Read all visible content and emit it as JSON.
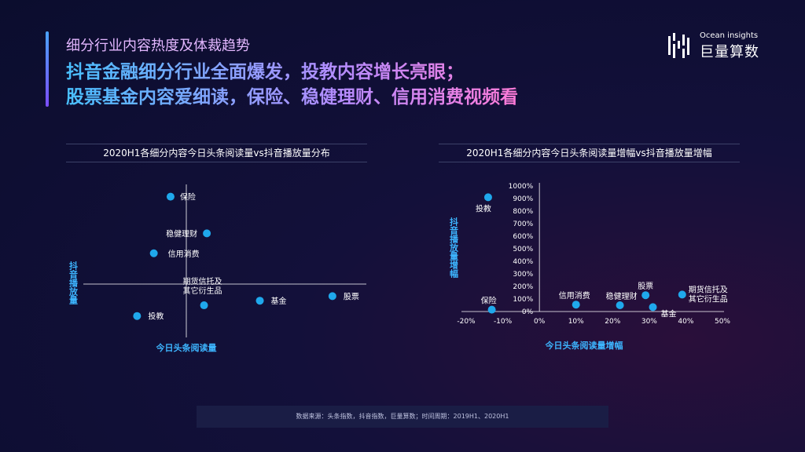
{
  "header": {
    "subtitle": "细分行业内容热度及体裁趋势",
    "headline_line1": "抖音金融细分行业全面爆发，投教内容增长亮眼；",
    "headline_line2": "股票基金内容爱细读，保险、稳健理财、信用消费视频看"
  },
  "logo": {
    "en": "Ocean insights",
    "cn": "巨量算数"
  },
  "colors": {
    "point": "#1fa8ec",
    "axis_title": "#3db5ff",
    "accent": "#4aa3ff"
  },
  "chart_data": [
    {
      "type": "scatter",
      "title": "2020H1各细分内容今日头条阅读量vs抖音播放量分布",
      "xlabel": "今日头条阅读量",
      "ylabel": "抖音播放量",
      "points": [
        {
          "label": "保险",
          "x": 0.29,
          "y": 0.92
        },
        {
          "label": "稳健理财",
          "x": 0.42,
          "y": 0.68
        },
        {
          "label": "信用消费",
          "x": 0.23,
          "y": 0.55
        },
        {
          "label": "期货信托及\n其它衍生品",
          "x": 0.41,
          "y": 0.21
        },
        {
          "label": "基金",
          "x": 0.61,
          "y": 0.24
        },
        {
          "label": "股票",
          "x": 0.87,
          "y": 0.27
        },
        {
          "label": "投教",
          "x": 0.17,
          "y": 0.14
        }
      ]
    },
    {
      "type": "scatter",
      "title": "2020H1各细分内容今日头条阅读量增幅vs抖音播放量增幅",
      "xlabel": "今日头条阅读量增幅",
      "ylabel": "抖音播放量增幅",
      "xlim": [
        -20,
        50
      ],
      "ylim": [
        0,
        1000
      ],
      "x_ticks": [
        "-20%",
        "-10%",
        "0%",
        "10%",
        "20%",
        "30%",
        "40%",
        "50%"
      ],
      "y_ticks": [
        "0%",
        "100%",
        "200%",
        "300%",
        "400%",
        "500%",
        "600%",
        "700%",
        "800%",
        "900%",
        "1000%"
      ],
      "points": [
        {
          "label": "投教",
          "x": -14,
          "y": 910
        },
        {
          "label": "保险",
          "x": -13,
          "y": 15
        },
        {
          "label": "信用消费",
          "x": 10,
          "y": 55
        },
        {
          "label": "稳健理财",
          "x": 22,
          "y": 50
        },
        {
          "label": "股票",
          "x": 29,
          "y": 130
        },
        {
          "label": "基金",
          "x": 31,
          "y": 35
        },
        {
          "label": "期货信托及\n其它衍生品",
          "x": 39,
          "y": 135
        }
      ]
    }
  ],
  "footer": {
    "source": "数据来源：头条指数，抖音指数，巨量算数；时间周期：2019H1、2020H1"
  }
}
